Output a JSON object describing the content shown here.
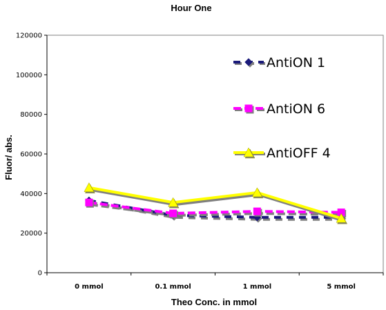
{
  "chart_data": {
    "type": "line",
    "title": "Hour One",
    "xlabel": "Theo Conc. in mmol",
    "ylabel": "Fluor/ abs.",
    "categories": [
      "0 mmol",
      "0.1 mmol",
      "1 mmol",
      "5 mmol"
    ],
    "ylim": [
      0,
      120000
    ],
    "yticks": [
      "0",
      "20000",
      "40000",
      "60000",
      "80000",
      "100000",
      "120000"
    ],
    "grid": false,
    "legend": "right",
    "series": [
      {
        "name": "AntiON 1",
        "values": [
          36500,
          29000,
          28000,
          28000
        ],
        "color": "#1a1a7a",
        "marker": "diamond",
        "dash": "10 8"
      },
      {
        "name": "AntiON 6",
        "values": [
          35500,
          30000,
          31000,
          30500
        ],
        "color": "#ff00ff",
        "marker": "square",
        "dash": "11 5"
      },
      {
        "name": "AntiOFF 4",
        "values": [
          43000,
          35500,
          40500,
          27500
        ],
        "color": "#ffff00",
        "marker": "triangle",
        "dash": ""
      }
    ]
  }
}
